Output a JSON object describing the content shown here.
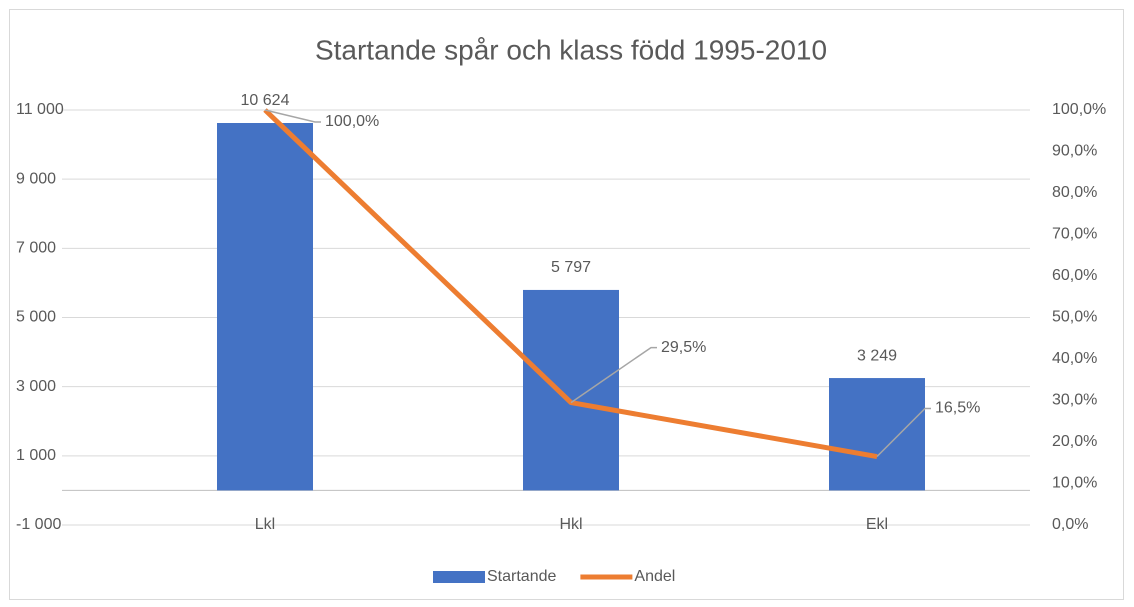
{
  "chart_data": {
    "type": "bar",
    "title": "Startande spår och klass född 1995-2010",
    "categories": [
      "Lkl",
      "Hkl",
      "Ekl"
    ],
    "series": [
      {
        "name": "Startande",
        "color": "#4472c4",
        "type": "bar",
        "values": [
          10624,
          5797,
          3249
        ],
        "value_labels": [
          "10 624",
          "5 797",
          "3 249"
        ]
      },
      {
        "name": "Andel",
        "color": "#ed7d31",
        "type": "line",
        "axis": "y2",
        "values": [
          100,
          29.5,
          16.5
        ],
        "value_labels": [
          "100,0%",
          "29,5%",
          "16,5%"
        ]
      }
    ],
    "ylim": [
      -1000,
      11000
    ],
    "yticks": [
      {
        "value": -1000,
        "label": "-1 000"
      },
      {
        "value": 1000,
        "label": "1 000"
      },
      {
        "value": 3000,
        "label": "3 000"
      },
      {
        "value": 5000,
        "label": "5 000"
      },
      {
        "value": 7000,
        "label": "7 000"
      },
      {
        "value": 9000,
        "label": "9 000"
      },
      {
        "value": 11000,
        "label": "11 000"
      }
    ],
    "y2lim": [
      0,
      100
    ],
    "y2ticks": [
      {
        "value": 0,
        "label": "0,0%"
      },
      {
        "value": 10,
        "label": "10,0%"
      },
      {
        "value": 20,
        "label": "20,0%"
      },
      {
        "value": 30,
        "label": "30,0%"
      },
      {
        "value": 40,
        "label": "40,0%"
      },
      {
        "value": 50,
        "label": "50,0%"
      },
      {
        "value": 60,
        "label": "60,0%"
      },
      {
        "value": 70,
        "label": "70,0%"
      },
      {
        "value": 80,
        "label": "80,0%"
      },
      {
        "value": 90,
        "label": "90,0%"
      },
      {
        "value": 100,
        "label": "100,0%"
      }
    ],
    "grid": true,
    "legend": "bottom"
  }
}
